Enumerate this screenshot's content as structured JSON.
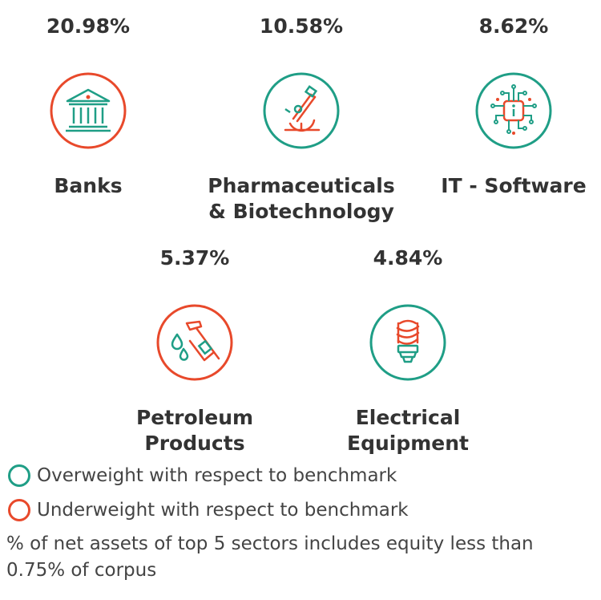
{
  "colors": {
    "overweight": "#1f9e86",
    "underweight": "#e8492b",
    "text": "#333333"
  },
  "sectors": [
    {
      "percent": "20.98%",
      "label_lines": [
        "Banks"
      ],
      "status": "underweight",
      "icon": "bank-icon"
    },
    {
      "percent": "10.58%",
      "label_lines": [
        "Pharmaceuticals",
        "& Biotechnology"
      ],
      "status": "overweight",
      "icon": "microscope-icon"
    },
    {
      "percent": "8.62%",
      "label_lines": [
        "IT - Software"
      ],
      "status": "overweight",
      "icon": "circuit-chip-icon"
    },
    {
      "percent": "5.37%",
      "label_lines": [
        "Petroleum",
        "Products"
      ],
      "status": "underweight",
      "icon": "fuel-nozzle-icon"
    },
    {
      "percent": "4.84%",
      "label_lines": [
        "Electrical",
        "Equipment"
      ],
      "status": "overweight",
      "icon": "light-bulb-icon"
    }
  ],
  "legend": {
    "overweight": "Overweight with respect to benchmark",
    "underweight": "Underweight with respect to benchmark"
  },
  "note_lines": [
    "% of net assets of top 5 sectors includes equity less than",
    "0.75% of corpus"
  ]
}
